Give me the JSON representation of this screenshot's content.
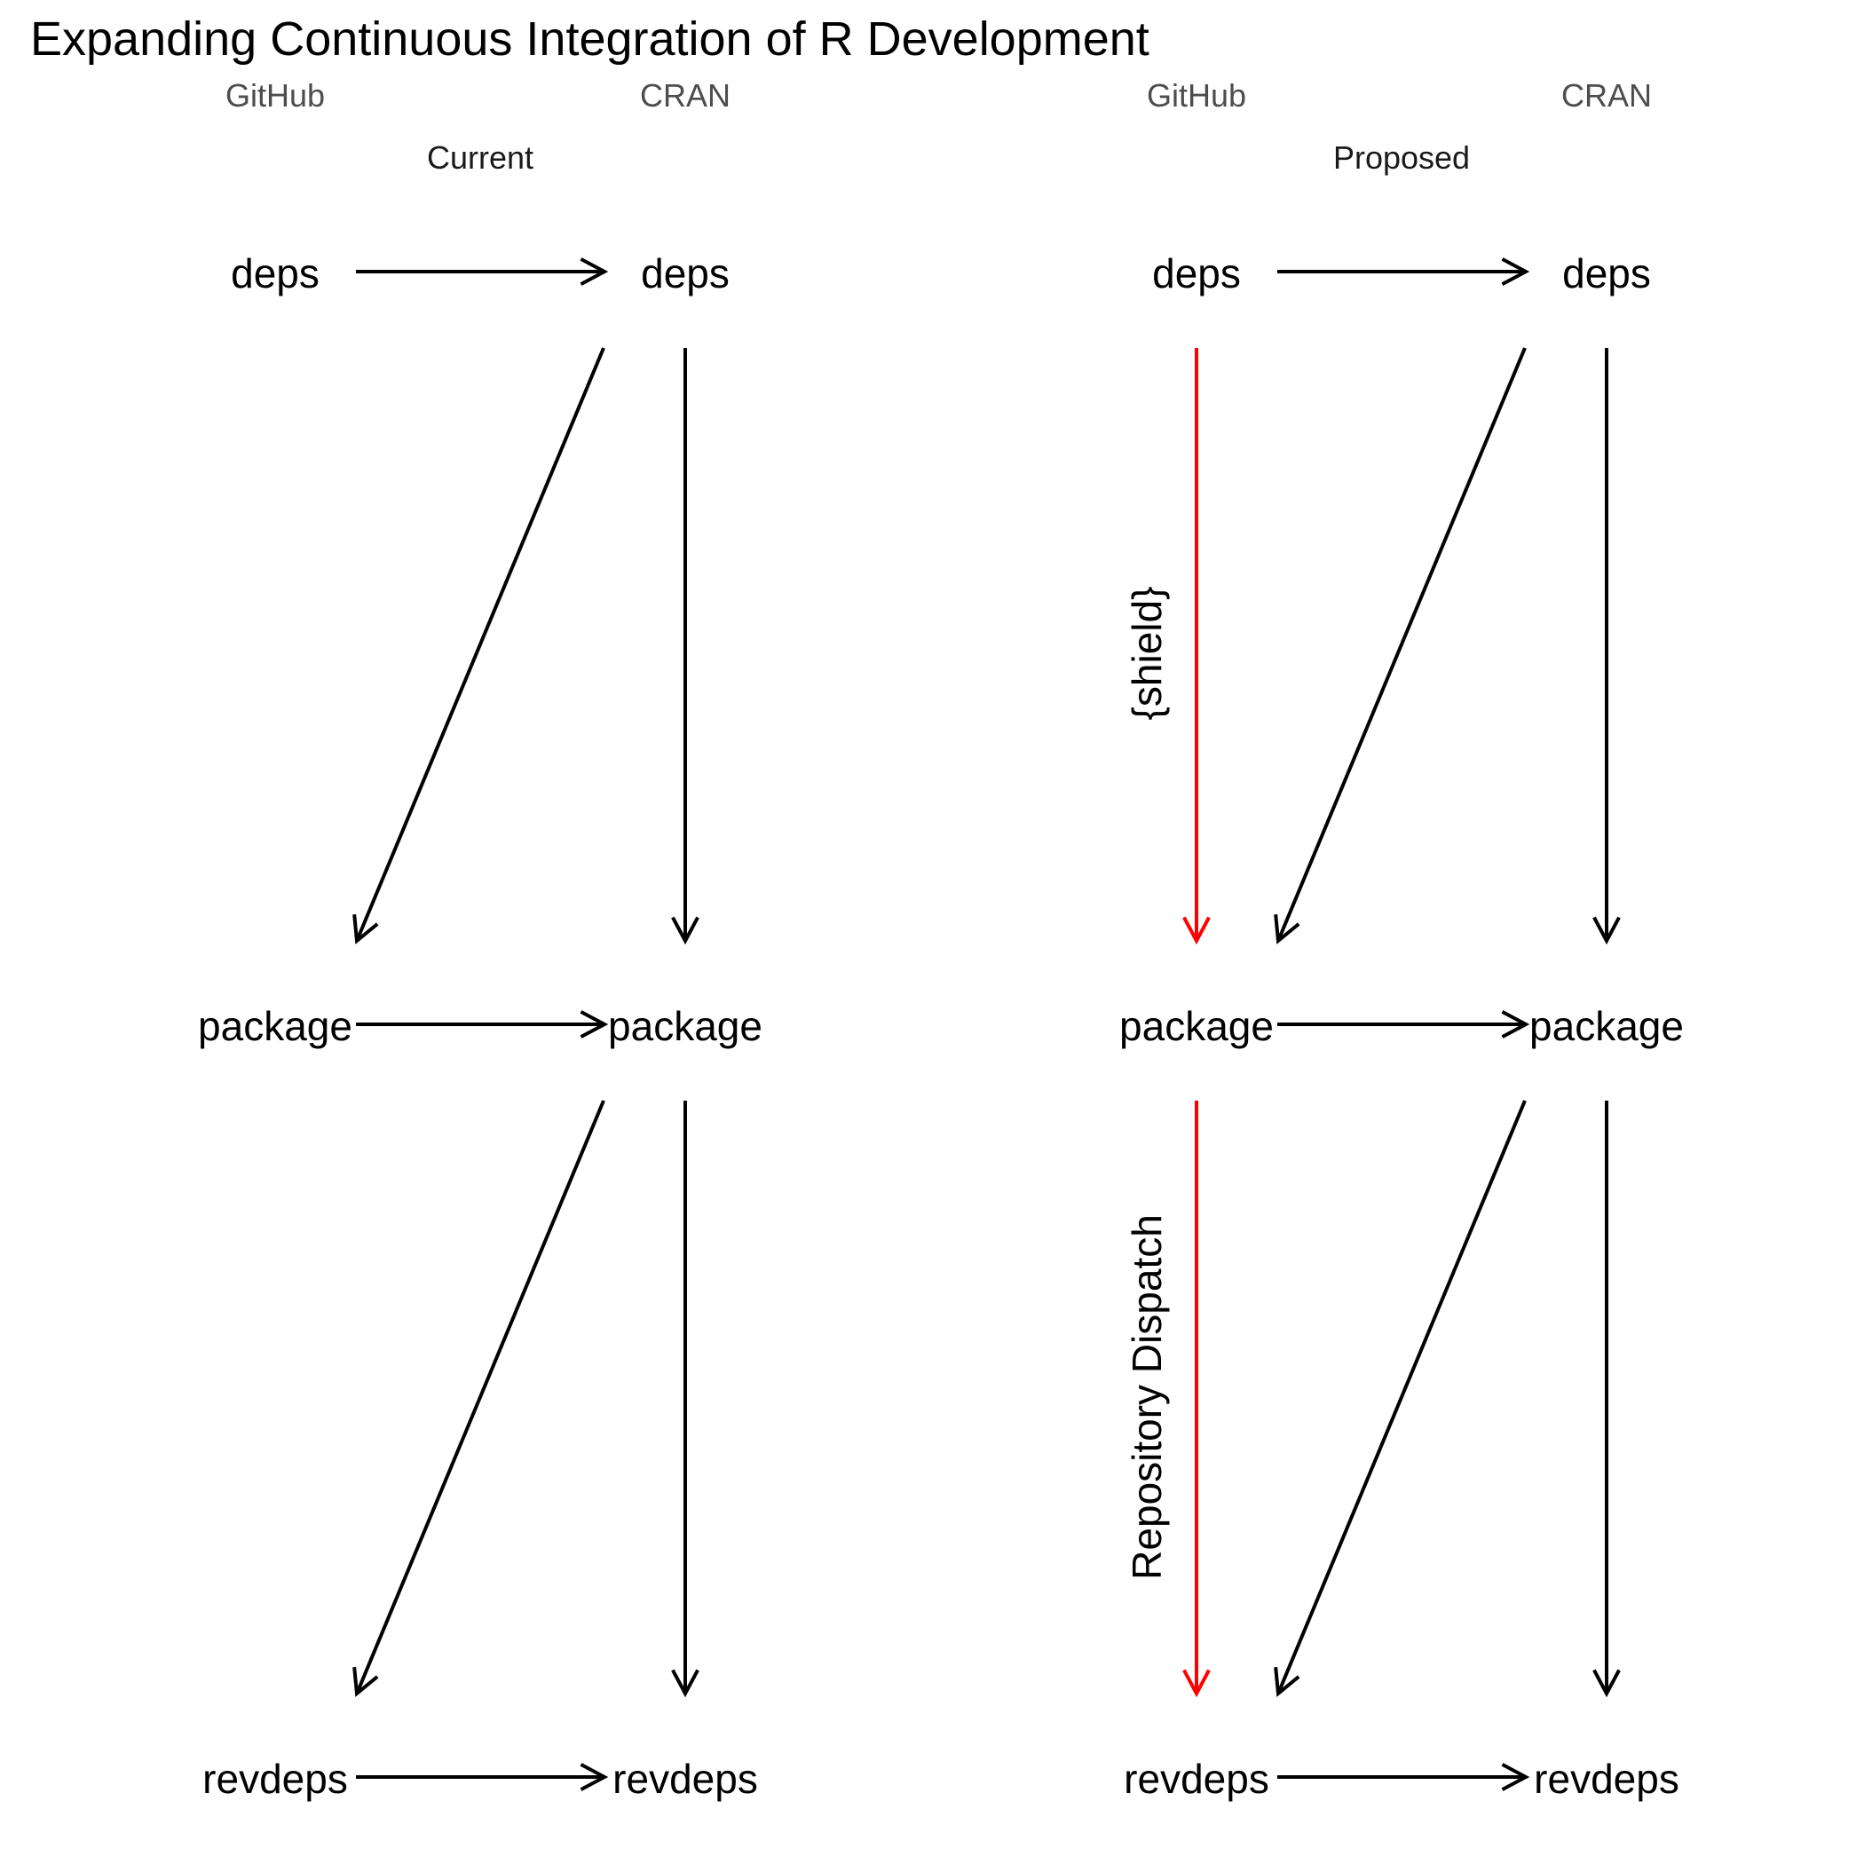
{
  "title": "Expanding Continuous Integration of R Development",
  "colors": {
    "default": "#000000",
    "highlight": "#ff0000"
  },
  "panels": [
    {
      "label": "Current",
      "columns": [
        "GitHub",
        "CRAN"
      ],
      "rows": [
        [
          "deps",
          "deps"
        ],
        [
          "package",
          "package"
        ],
        [
          "revdeps",
          "revdeps"
        ]
      ],
      "edges": [
        {
          "from": "github-deps",
          "to": "cran-deps",
          "color": "default",
          "label": ""
        },
        {
          "from": "cran-deps",
          "to": "github-package",
          "color": "default",
          "label": ""
        },
        {
          "from": "cran-deps",
          "to": "cran-package",
          "color": "default",
          "label": ""
        },
        {
          "from": "github-package",
          "to": "cran-package",
          "color": "default",
          "label": ""
        },
        {
          "from": "cran-package",
          "to": "github-revdeps",
          "color": "default",
          "label": ""
        },
        {
          "from": "cran-package",
          "to": "cran-revdeps",
          "color": "default",
          "label": ""
        },
        {
          "from": "github-revdeps",
          "to": "cran-revdeps",
          "color": "default",
          "label": ""
        }
      ]
    },
    {
      "label": "Proposed",
      "columns": [
        "GitHub",
        "CRAN"
      ],
      "rows": [
        [
          "deps",
          "deps"
        ],
        [
          "package",
          "package"
        ],
        [
          "revdeps",
          "revdeps"
        ]
      ],
      "edges": [
        {
          "from": "github-deps",
          "to": "cran-deps",
          "color": "default",
          "label": ""
        },
        {
          "from": "github-deps",
          "to": "github-package",
          "color": "highlight",
          "label": "{shield}"
        },
        {
          "from": "cran-deps",
          "to": "github-package",
          "color": "default",
          "label": ""
        },
        {
          "from": "cran-deps",
          "to": "cran-package",
          "color": "default",
          "label": ""
        },
        {
          "from": "github-package",
          "to": "cran-package",
          "color": "default",
          "label": ""
        },
        {
          "from": "github-package",
          "to": "github-revdeps",
          "color": "highlight",
          "label": "Repository Dispatch"
        },
        {
          "from": "cran-package",
          "to": "github-revdeps",
          "color": "default",
          "label": ""
        },
        {
          "from": "cran-package",
          "to": "cran-revdeps",
          "color": "default",
          "label": ""
        },
        {
          "from": "github-revdeps",
          "to": "cran-revdeps",
          "color": "default",
          "label": ""
        }
      ]
    }
  ]
}
